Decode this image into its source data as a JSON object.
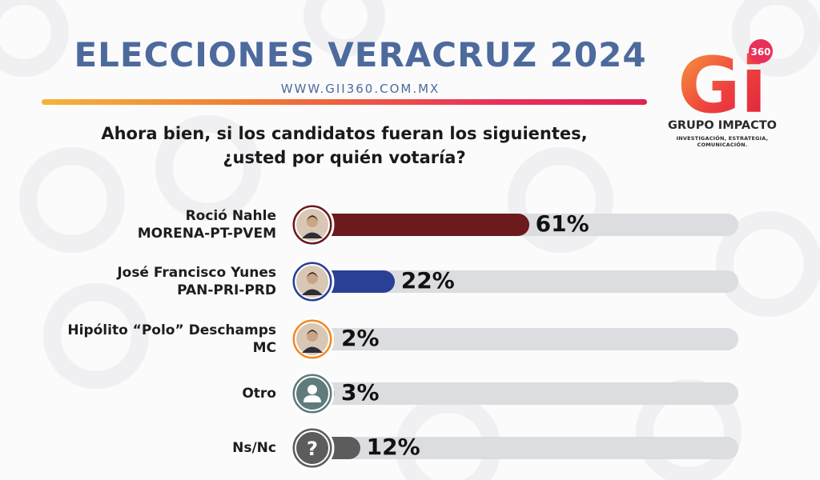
{
  "header": {
    "title": "ELECCIONES VERACRUZ 2024",
    "url": "WWW.GII360.COM.MX",
    "question_line1": "Ahora bien, si los candidatos fueran los siguientes,",
    "question_line2": "¿usted por quién votaría?"
  },
  "logo": {
    "mark": "Gi",
    "badge": "360",
    "name": "GRUPO IMPACTO",
    "tagline": "INVESTIGACIÓN, ESTRATEGIA, COMUNICACIÓN."
  },
  "chart_data": {
    "type": "bar",
    "orientation": "horizontal",
    "unit": "%",
    "xlim": [
      0,
      100
    ],
    "categories": [
      "Roció Nahle MORENA-PT-PVEM",
      "José Francisco Yunes PAN-PRI-PRD",
      "Hipólito “Polo” Deschamps MC",
      "Otro",
      "Ns/Nc"
    ],
    "values": [
      61,
      22,
      2,
      3,
      12
    ],
    "rows": [
      {
        "line1": "Roció Nahle",
        "line2": "MORENA-PT-PVEM",
        "value": 61,
        "value_label": "61%",
        "color": "#6b1a1e",
        "avatar": "photo-icon"
      },
      {
        "line1": "José Francisco Yunes",
        "line2": "PAN-PRI-PRD",
        "value": 22,
        "value_label": "22%",
        "color": "#2a3f96",
        "avatar": "photo-icon"
      },
      {
        "line1": "Hipólito “Polo” Deschamps",
        "line2": "MC",
        "value": 2,
        "value_label": "2%",
        "color": "#f08a24",
        "avatar": "photo-icon"
      },
      {
        "line1": "Otro",
        "line2": "",
        "value": 3,
        "value_label": "3%",
        "color": "#5f7b7b",
        "avatar": "person-icon"
      },
      {
        "line1": "Ns/Nc",
        "line2": "",
        "value": 12,
        "value_label": "12%",
        "color": "#5c5c5c",
        "avatar": "question-icon"
      }
    ]
  },
  "colors": {
    "title": "#4d6a9d",
    "track": "#dcdde0",
    "rule_gradient": [
      "#f5b33b",
      "#e0234f"
    ]
  }
}
